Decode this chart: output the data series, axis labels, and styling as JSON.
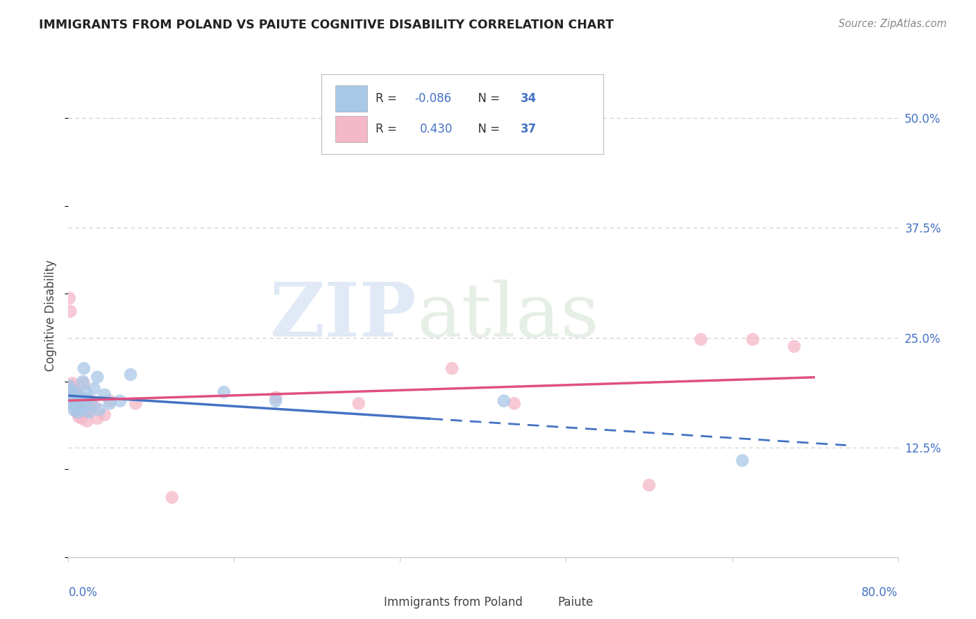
{
  "title": "IMMIGRANTS FROM POLAND VS PAIUTE COGNITIVE DISABILITY CORRELATION CHART",
  "source": "Source: ZipAtlas.com",
  "ylabel": "Cognitive Disability",
  "legend_label1": "Immigrants from Poland",
  "legend_label2": "Paiute",
  "R1": -0.086,
  "N1": 34,
  "R2": 0.43,
  "N2": 37,
  "watermark_zip": "ZIP",
  "watermark_atlas": "atlas",
  "color_blue": "#a8c8e8",
  "color_pink": "#f4b8c8",
  "color_blue_line": "#4472c4",
  "color_pink_line": "#e05080",
  "color_axis_labels": "#4472c4",
  "color_grid": "#cccccc",
  "xmin": 0.0,
  "xmax": 0.8,
  "ymin": 0.0,
  "ymax": 0.55,
  "ytick_vals": [
    0.125,
    0.25,
    0.375,
    0.5
  ],
  "ytick_labels": [
    "12.5%",
    "25.0%",
    "37.5%",
    "50.0%"
  ],
  "blue_scatter_x": [
    0.001,
    0.002,
    0.003,
    0.003,
    0.004,
    0.005,
    0.005,
    0.006,
    0.007,
    0.007,
    0.008,
    0.009,
    0.01,
    0.011,
    0.012,
    0.013,
    0.014,
    0.015,
    0.016,
    0.017,
    0.018,
    0.02,
    0.022,
    0.025,
    0.028,
    0.03,
    0.035,
    0.04,
    0.05,
    0.06,
    0.15,
    0.2,
    0.42,
    0.65
  ],
  "blue_scatter_y": [
    0.195,
    0.185,
    0.19,
    0.175,
    0.178,
    0.168,
    0.182,
    0.172,
    0.178,
    0.188,
    0.175,
    0.165,
    0.17,
    0.182,
    0.172,
    0.168,
    0.2,
    0.215,
    0.178,
    0.188,
    0.18,
    0.165,
    0.175,
    0.192,
    0.205,
    0.168,
    0.185,
    0.175,
    0.178,
    0.208,
    0.188,
    0.178,
    0.178,
    0.11
  ],
  "pink_scatter_x": [
    0.001,
    0.001,
    0.002,
    0.003,
    0.004,
    0.004,
    0.005,
    0.006,
    0.007,
    0.008,
    0.009,
    0.01,
    0.011,
    0.012,
    0.013,
    0.014,
    0.015,
    0.016,
    0.017,
    0.018,
    0.019,
    0.02,
    0.022,
    0.025,
    0.028,
    0.035,
    0.04,
    0.065,
    0.1,
    0.2,
    0.28,
    0.37,
    0.43,
    0.56,
    0.61,
    0.66,
    0.7
  ],
  "pink_scatter_y": [
    0.295,
    0.178,
    0.28,
    0.195,
    0.182,
    0.198,
    0.178,
    0.19,
    0.172,
    0.165,
    0.185,
    0.16,
    0.175,
    0.182,
    0.158,
    0.175,
    0.198,
    0.165,
    0.172,
    0.155,
    0.175,
    0.168,
    0.178,
    0.172,
    0.158,
    0.162,
    0.178,
    0.175,
    0.068,
    0.182,
    0.175,
    0.215,
    0.175,
    0.082,
    0.248,
    0.248,
    0.24
  ],
  "blue_line_x_solid_end": 0.35,
  "blue_line_x_end": 0.75,
  "pink_line_x_start": 0.0,
  "pink_line_x_end": 0.72
}
